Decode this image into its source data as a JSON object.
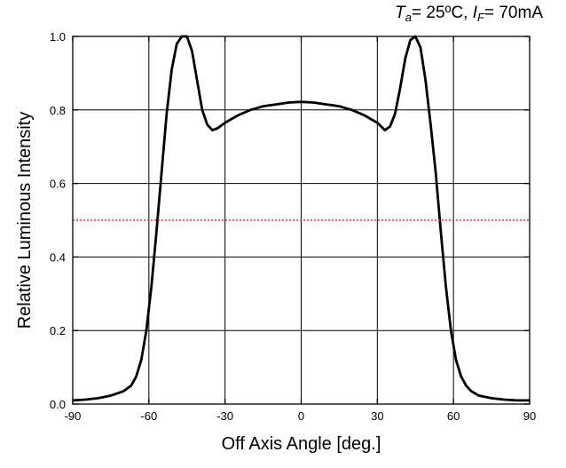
{
  "conditions": {
    "ta_symbol": "T",
    "ta_sub": "a",
    "ta_value": "= 25ºC,",
    "if_symbol": "I",
    "if_sub": "F",
    "if_value": "= 70mA"
  },
  "chart_data": {
    "type": "line",
    "title": "",
    "xlabel": "Off Axis Angle [deg.]",
    "ylabel": "Relative Luminous Intensity",
    "xlim": [
      -90,
      90
    ],
    "ylim": [
      0.0,
      1.0
    ],
    "x_ticks": [
      -90,
      -60,
      -30,
      0,
      30,
      60,
      90
    ],
    "x_tick_labels": [
      "-90",
      "-60",
      "-30",
      "0",
      "30",
      "60",
      "90"
    ],
    "y_ticks": [
      0.0,
      0.2,
      0.4,
      0.6,
      0.8,
      1.0
    ],
    "y_tick_labels": [
      "0.0",
      "0.2",
      "0.4",
      "0.6",
      "0.8",
      "1.0"
    ],
    "grid": true,
    "series": [
      {
        "color": "#000000",
        "style": "solid",
        "x": [
          -90,
          -85,
          -80,
          -75,
          -70,
          -67,
          -65,
          -63,
          -61,
          -59,
          -57,
          -55,
          -53,
          -51,
          -49,
          -47,
          -45,
          -43,
          -41,
          -39,
          -37,
          -35,
          -33,
          -30,
          -25,
          -20,
          -15,
          -10,
          -5,
          0,
          5,
          10,
          15,
          20,
          25,
          30,
          33,
          35,
          37,
          39,
          41,
          43,
          45,
          47,
          49,
          51,
          53,
          55,
          57,
          59,
          61,
          63,
          65,
          67,
          70,
          75,
          80,
          85,
          90
        ],
        "y": [
          0.01,
          0.012,
          0.016,
          0.023,
          0.035,
          0.05,
          0.075,
          0.12,
          0.2,
          0.32,
          0.47,
          0.63,
          0.79,
          0.91,
          0.98,
          1.0,
          1.0,
          0.96,
          0.88,
          0.8,
          0.76,
          0.745,
          0.75,
          0.765,
          0.785,
          0.8,
          0.81,
          0.815,
          0.82,
          0.822,
          0.82,
          0.815,
          0.81,
          0.8,
          0.785,
          0.765,
          0.745,
          0.755,
          0.79,
          0.86,
          0.94,
          0.99,
          1.0,
          0.97,
          0.88,
          0.76,
          0.63,
          0.47,
          0.32,
          0.2,
          0.12,
          0.075,
          0.05,
          0.035,
          0.023,
          0.016,
          0.012,
          0.01,
          0.01
        ]
      },
      {
        "color": "#e03030",
        "style": "dotted",
        "x": [
          -90,
          90
        ],
        "y": [
          0.5,
          0.5
        ]
      }
    ]
  }
}
